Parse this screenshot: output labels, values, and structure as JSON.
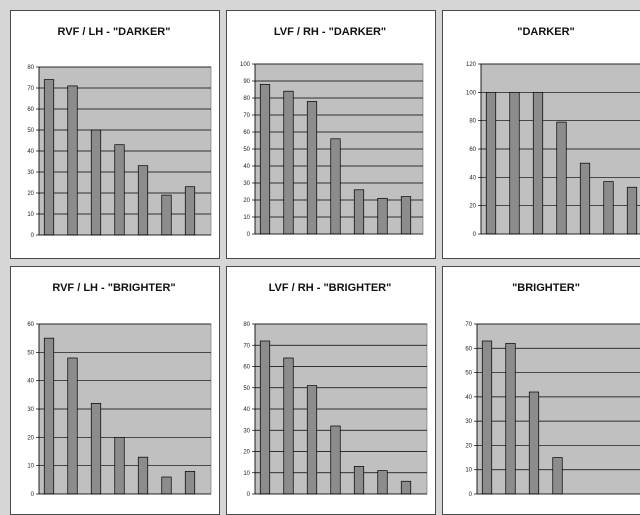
{
  "colors": {
    "page_background": "#d6d6d6",
    "panel_background": "#ffffff",
    "plot_area": "#c0c0c0",
    "bar_fill": "#8c8c8c",
    "bar_stroke": "#000000",
    "gridline": "#000000"
  },
  "chart_data": [
    {
      "type": "bar",
      "title": "RVF / LH - \"DARKER\"",
      "xlabel": "",
      "ylabel": "",
      "ylim": [
        0,
        80
      ],
      "yticks": [
        0,
        10,
        20,
        30,
        40,
        50,
        60,
        70,
        80
      ],
      "grid": true,
      "values": [
        74,
        71,
        50,
        43,
        33,
        19,
        23
      ]
    },
    {
      "type": "bar",
      "title": "LVF / RH - \"DARKER\"",
      "xlabel": "",
      "ylabel": "",
      "ylim": [
        0,
        100
      ],
      "yticks": [
        0,
        10,
        20,
        30,
        40,
        50,
        60,
        70,
        80,
        90,
        100
      ],
      "grid": true,
      "values": [
        88,
        84,
        78,
        56,
        26,
        21,
        22
      ]
    },
    {
      "type": "bar",
      "title": "\"DARKER\"",
      "xlabel": "",
      "ylabel": "",
      "ylim": [
        0,
        120
      ],
      "yticks": [
        0,
        20,
        40,
        60,
        80,
        100,
        120
      ],
      "grid": true,
      "values": [
        100,
        100,
        100,
        79,
        50,
        37,
        33
      ]
    },
    {
      "type": "bar",
      "title": "RVF / LH - \"BRIGHTER\"",
      "xlabel": "",
      "ylabel": "",
      "ylim": [
        0,
        60
      ],
      "yticks": [
        0,
        10,
        20,
        30,
        40,
        50,
        60
      ],
      "grid": true,
      "values": [
        55,
        48,
        32,
        20,
        13,
        6,
        8
      ]
    },
    {
      "type": "bar",
      "title": "LVF / RH - \"BRIGHTER\"",
      "xlabel": "",
      "ylabel": "",
      "ylim": [
        0,
        80
      ],
      "yticks": [
        0,
        10,
        20,
        30,
        40,
        50,
        60,
        70,
        80
      ],
      "grid": true,
      "values": [
        72,
        64,
        51,
        32,
        13,
        11,
        6
      ]
    },
    {
      "type": "bar",
      "title": "\"BRIGHTER\"",
      "xlabel": "",
      "ylabel": "",
      "ylim": [
        0,
        70
      ],
      "yticks": [
        0,
        10,
        20,
        30,
        40,
        50,
        60,
        70
      ],
      "grid": true,
      "values": [
        63,
        62,
        42,
        15
      ]
    }
  ]
}
